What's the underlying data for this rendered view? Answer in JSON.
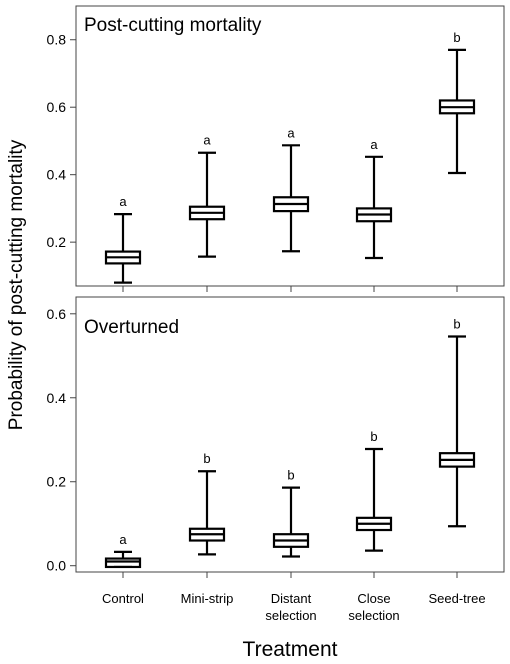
{
  "figure": {
    "ylabel": "Probability of post-cutting mortality",
    "xlabel": "Treatment"
  },
  "chart_data": [
    {
      "type": "boxplot",
      "title": "Post-cutting mortality",
      "ylim": [
        0.07,
        0.9
      ],
      "yticks": [
        0.2,
        0.4,
        0.6,
        0.8
      ],
      "ytick_labels": [
        "0.2",
        "0.4",
        "0.6",
        "0.8"
      ],
      "categories": [
        "Control",
        "Mini-strip",
        "Distant selection",
        "Close selection",
        "Seed-tree"
      ],
      "series": [
        {
          "lower": 0.08,
          "q1": 0.137,
          "median": 0.155,
          "q3": 0.172,
          "upper": 0.283,
          "letter": "a"
        },
        {
          "lower": 0.157,
          "q1": 0.268,
          "median": 0.287,
          "q3": 0.305,
          "upper": 0.465,
          "letter": "a"
        },
        {
          "lower": 0.173,
          "q1": 0.292,
          "median": 0.313,
          "q3": 0.333,
          "upper": 0.487,
          "letter": "a"
        },
        {
          "lower": 0.153,
          "q1": 0.262,
          "median": 0.282,
          "q3": 0.3,
          "upper": 0.453,
          "letter": "a"
        },
        {
          "lower": 0.405,
          "q1": 0.582,
          "median": 0.6,
          "q3": 0.62,
          "upper": 0.77,
          "letter": "b"
        }
      ],
      "grid": false
    },
    {
      "type": "boxplot",
      "title": "Overturned",
      "ylim": [
        -0.015,
        0.64
      ],
      "yticks": [
        0.0,
        0.2,
        0.4,
        0.6
      ],
      "ytick_labels": [
        "0.0",
        "0.2",
        "0.4",
        "0.6"
      ],
      "categories": [
        "Control",
        "Mini-strip",
        "Distant selection",
        "Close selection",
        "Seed-tree"
      ],
      "series": [
        {
          "lower": -0.003,
          "q1": -0.003,
          "median": 0.01,
          "q3": 0.017,
          "upper": 0.033,
          "letter": "a"
        },
        {
          "lower": 0.027,
          "q1": 0.06,
          "median": 0.075,
          "q3": 0.088,
          "upper": 0.225,
          "letter": "b"
        },
        {
          "lower": 0.022,
          "q1": 0.045,
          "median": 0.06,
          "q3": 0.075,
          "upper": 0.186,
          "letter": "b"
        },
        {
          "lower": 0.036,
          "q1": 0.085,
          "median": 0.1,
          "q3": 0.114,
          "upper": 0.278,
          "letter": "b"
        },
        {
          "lower": 0.094,
          "q1": 0.236,
          "median": 0.252,
          "q3": 0.268,
          "upper": 0.546,
          "letter": "b"
        }
      ],
      "grid": false
    }
  ]
}
